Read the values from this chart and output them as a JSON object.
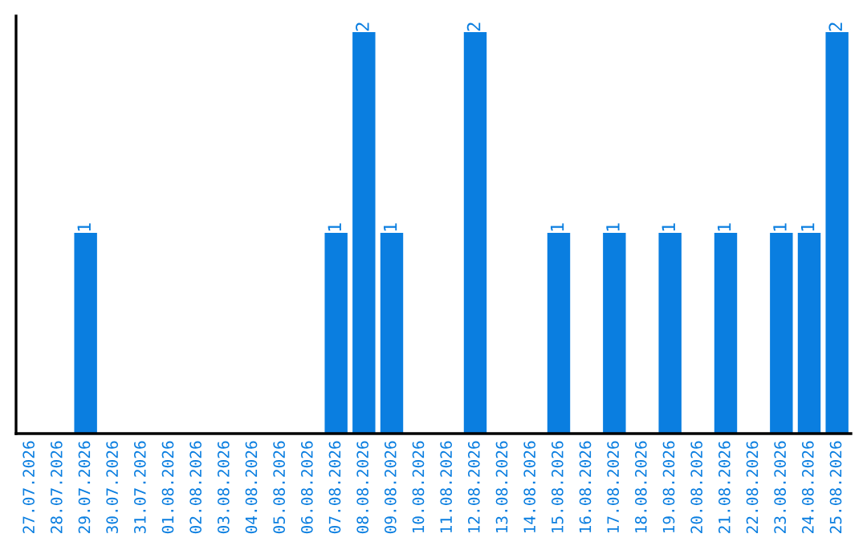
{
  "chart_data": {
    "type": "bar",
    "categories": [
      "27.07.2026",
      "28.07.2026",
      "29.07.2026",
      "30.07.2026",
      "31.07.2026",
      "01.08.2026",
      "02.08.2026",
      "03.08.2026",
      "04.08.2026",
      "05.08.2026",
      "06.08.2026",
      "07.08.2026",
      "08.08.2026",
      "09.08.2026",
      "10.08.2026",
      "11.08.2026",
      "12.08.2026",
      "13.08.2026",
      "14.08.2026",
      "15.08.2026",
      "16.08.2026",
      "17.08.2026",
      "18.08.2026",
      "19.08.2026",
      "20.08.2026",
      "21.08.2026",
      "22.08.2026",
      "23.08.2026",
      "24.08.2026",
      "25.08.2026"
    ],
    "values": [
      0,
      0,
      1,
      0,
      0,
      0,
      0,
      0,
      0,
      0,
      0,
      1,
      2,
      1,
      0,
      0,
      2,
      0,
      0,
      1,
      0,
      1,
      0,
      1,
      0,
      1,
      0,
      1,
      1,
      2
    ],
    "value_labels": [
      null,
      null,
      "1",
      null,
      null,
      null,
      null,
      null,
      null,
      null,
      null,
      "1",
      "2",
      "1",
      null,
      null,
      "2",
      null,
      null,
      "1",
      null,
      "1",
      null,
      "1",
      null,
      "1",
      null,
      "1",
      "1",
      "2"
    ],
    "color": "#0a7ee0",
    "tick_labels": "x",
    "grid": false,
    "legend": false
  }
}
